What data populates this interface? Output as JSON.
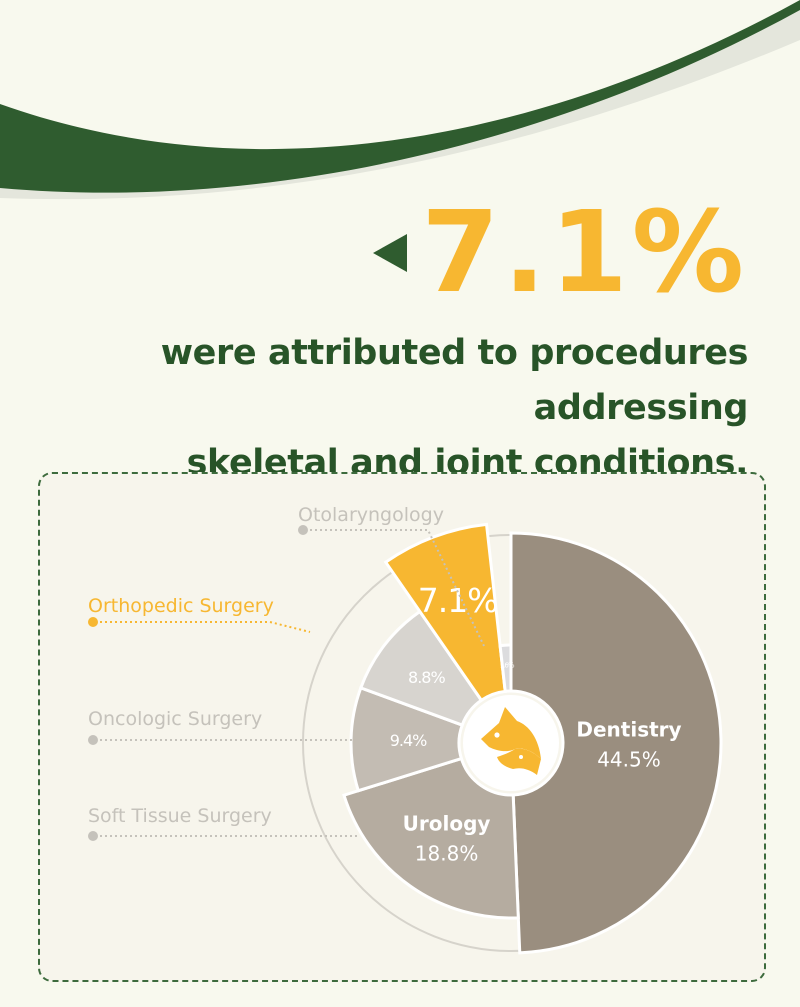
{
  "headline": {
    "stat": "7.1%",
    "line1": "were attributed to procedures addressing",
    "line2": "skeletal and joint conditions."
  },
  "colors": {
    "background": "#f8f9ee",
    "brand_green": "#285428",
    "accent_yellow": "#f7b731",
    "dentistry": "#9a8e7f",
    "urology": "#b5aca0",
    "soft_tissue": "#c3bcb3",
    "oncologic": "#d7d4cf",
    "otolaryngology": "#dcdcde",
    "label_muted": "#c5c2bb"
  },
  "chart_data": {
    "type": "pie",
    "categories": [
      "Dentistry",
      "Urology",
      "Soft Tissue Surgery",
      "Oncologic Surgery",
      "Orthopedic Surgery",
      "Otolaryngology"
    ],
    "values": [
      44.5,
      18.8,
      9.4,
      8.8,
      7.1,
      1.6
    ],
    "labels": [
      "44.5%",
      "18.8%",
      "9.4%",
      "8.8%",
      "7.1%",
      "1.6%"
    ],
    "highlighted": "Orthopedic Surgery",
    "center_icon": "fox-cat-icon",
    "legend": "callout-left"
  }
}
